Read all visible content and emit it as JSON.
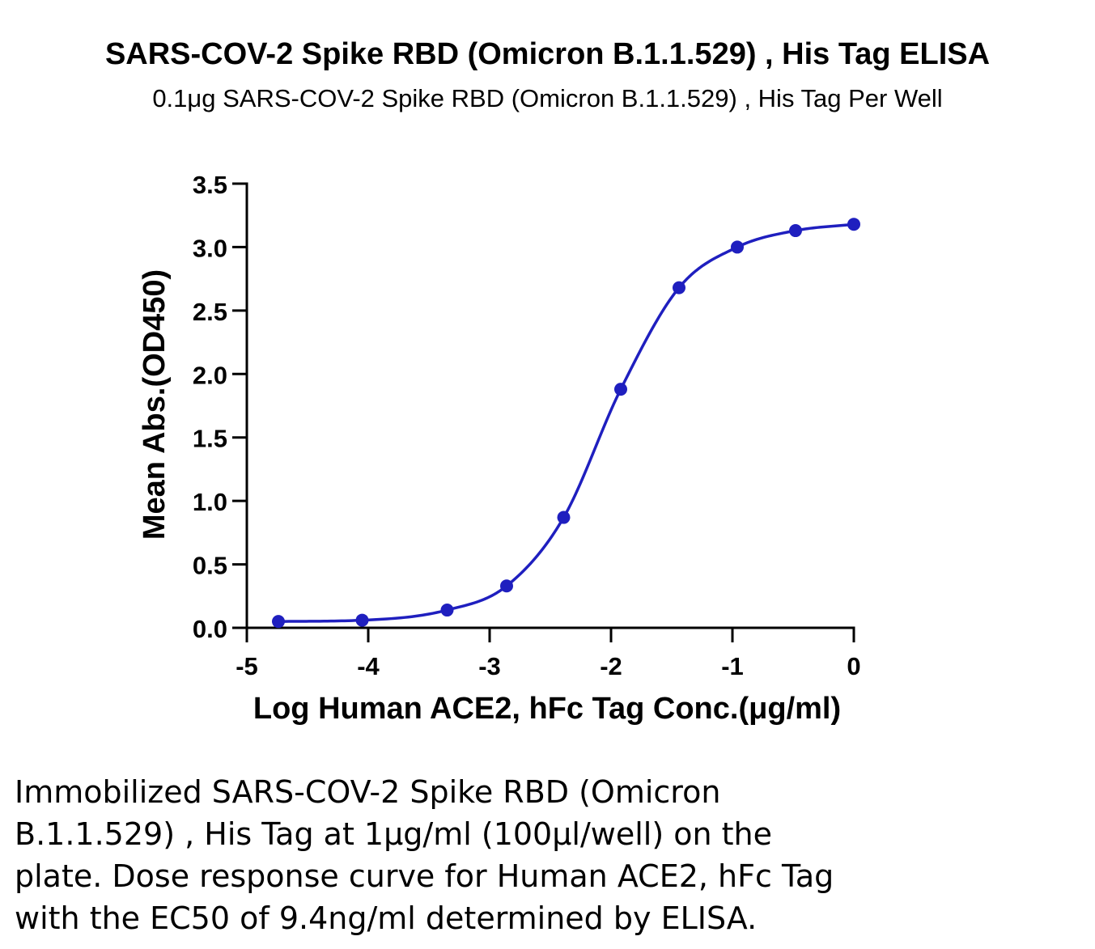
{
  "chart_data": {
    "type": "scatter",
    "title": "SARS-COV-2 Spike RBD (Omicron B.1.1.529) , His Tag ELISA",
    "subtitle": "0.1μg SARS-COV-2 Spike RBD (Omicron B.1.1.529) , His Tag Per Well",
    "xlabel": "Log Human ACE2, hFc Tag Conc.(μg/ml)",
    "ylabel": "Mean Abs.(OD450)",
    "xlim": [
      -5,
      0
    ],
    "ylim": [
      0,
      3.5
    ],
    "x_ticks": [
      "-5",
      "-4",
      "-3",
      "-2",
      "-1",
      "0"
    ],
    "y_ticks": [
      "0.0",
      "0.5",
      "1.0",
      "1.5",
      "2.0",
      "2.5",
      "3.0",
      "3.5"
    ],
    "grid": false,
    "color": "#1f1fbf",
    "series": [
      {
        "x": [
          -4.74,
          -4.05,
          -3.35,
          -2.86,
          -2.39,
          -1.92,
          -1.44,
          -0.96,
          -0.48,
          0.0
        ],
        "y": [
          0.05,
          0.06,
          0.14,
          0.33,
          0.87,
          1.88,
          2.68,
          3.0,
          3.13,
          3.18
        ]
      }
    ]
  },
  "caption": {
    "lines": [
      "Immobilized SARS-COV-2 Spike RBD (Omicron",
      "B.1.1.529) , His Tag at 1μg/ml (100μl/well) on the",
      "plate. Dose response curve for Human ACE2, hFc Tag",
      "with the EC50 of 9.4ng/ml determined by ELISA."
    ]
  }
}
